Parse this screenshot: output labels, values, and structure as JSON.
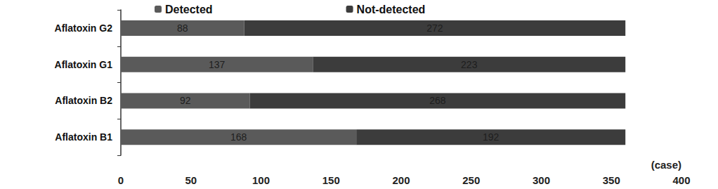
{
  "chart_data": {
    "type": "bar",
    "orientation": "horizontal",
    "stacked": true,
    "categories": [
      "Aflatoxin B1",
      "Aflatoxin B2",
      "Aflatoxin G1",
      "Aflatoxin G2"
    ],
    "series": [
      {
        "name": "Detected",
        "color": "#5a5a5a",
        "values": [
          168,
          92,
          137,
          88
        ]
      },
      {
        "name": "Not-detected",
        "color": "#3c3c3c",
        "values": [
          192,
          268,
          223,
          272
        ]
      }
    ],
    "xlabel": "(case)",
    "xlim": [
      0,
      400
    ],
    "xticks": [
      0,
      50,
      100,
      150,
      200,
      250,
      300,
      350,
      400
    ],
    "grid": false,
    "legend": "top",
    "data_labels": true
  }
}
